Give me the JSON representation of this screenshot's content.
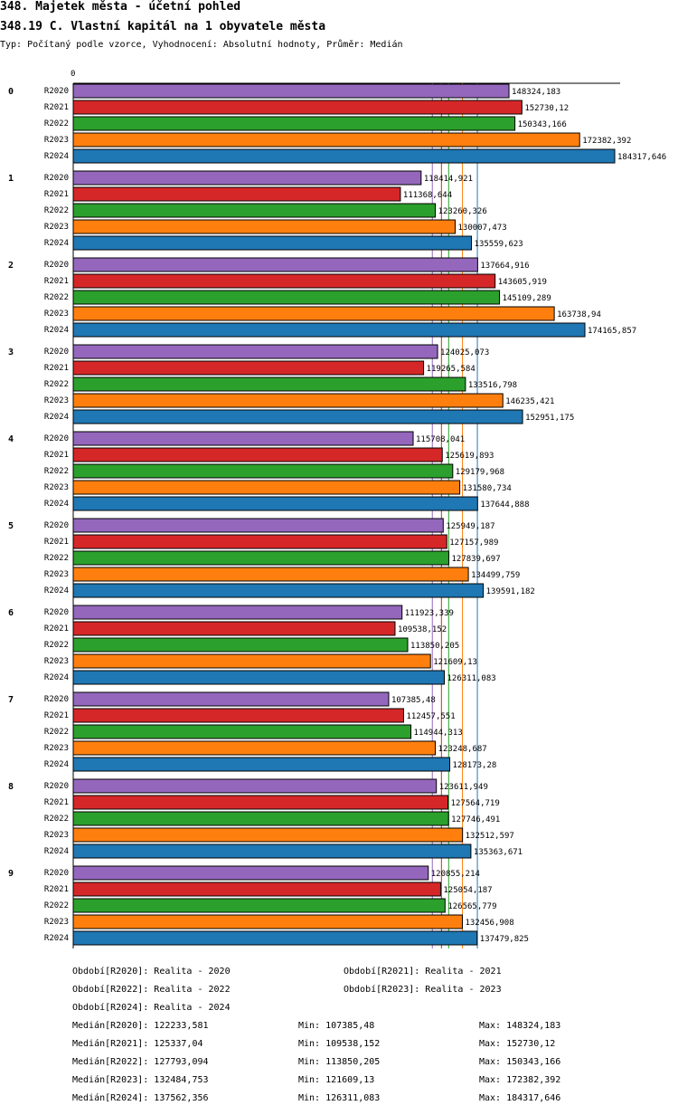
{
  "header": {
    "title": "348. Majetek města - účetní pohled",
    "subtitle": "348.19 C. Vlastní kapitál na 1 obyvatele města",
    "meta": "Typ: Počítaný podle vzorce, Vyhodnocení: Absolutní hodnoty, Průměr: Medián"
  },
  "chart_data": {
    "type": "bar",
    "orientation": "horizontal",
    "axis_zero_label": "0",
    "xlim": [
      0,
      184317.646
    ],
    "groups": [
      "0",
      "1",
      "2",
      "3",
      "4",
      "5",
      "6",
      "7",
      "8",
      "9"
    ],
    "series": [
      {
        "name": "R2020",
        "color": "#9467bd",
        "values": [
          148324.183,
          118414.921,
          137664.916,
          124025.073,
          115708.041,
          125949.187,
          111923.339,
          107385.48,
          123611.949,
          120855.214
        ],
        "labels": [
          "148324,183",
          "118414,921",
          "137664,916",
          "124025,073",
          "115708,041",
          "125949,187",
          "111923,339",
          "107385,48",
          "123611,949",
          "120855,214"
        ]
      },
      {
        "name": "R2021",
        "color": "#d62728",
        "values": [
          152730.12,
          111368.644,
          143605.919,
          119265.584,
          125619.893,
          127157.989,
          109538.152,
          112457.551,
          127564.719,
          125054.187
        ],
        "labels": [
          "152730,12",
          "111368,644",
          "143605,919",
          "119265,584",
          "125619,893",
          "127157,989",
          "109538,152",
          "112457,551",
          "127564,719",
          "125054,187"
        ]
      },
      {
        "name": "R2022",
        "color": "#2ca02c",
        "values": [
          150343.166,
          123260.326,
          145109.289,
          133516.798,
          129179.968,
          127839.697,
          113850.205,
          114944.313,
          127746.491,
          126565.779
        ],
        "labels": [
          "150343,166",
          "123260,326",
          "145109,289",
          "133516,798",
          "129179,968",
          "127839,697",
          "113850,205",
          "114944,313",
          "127746,491",
          "126565,779"
        ]
      },
      {
        "name": "R2023",
        "color": "#ff7f0e",
        "values": [
          172382.392,
          130007.473,
          163738.94,
          146235.421,
          131580.734,
          134499.759,
          121609.13,
          123248.687,
          132512.597,
          132456.908
        ],
        "labels": [
          "172382,392",
          "130007,473",
          "163738,94",
          "146235,421",
          "131580,734",
          "134499,759",
          "121609,13",
          "123248,687",
          "132512,597",
          "132456,908"
        ]
      },
      {
        "name": "R2024",
        "color": "#1f77b4",
        "values": [
          184317.646,
          135559.623,
          174165.857,
          152951.175,
          137644.888,
          139591.182,
          126311.083,
          128173.28,
          135363.671,
          137479.825
        ],
        "labels": [
          "184317,646",
          "135559,623",
          "174165,857",
          "152951,175",
          "137644,888",
          "139591,182",
          "126311,083",
          "128173,28",
          "135363,671",
          "137479,825"
        ]
      }
    ],
    "median_lines": [
      {
        "series": "R2020",
        "value": 122233.581,
        "color": "#9467bd"
      },
      {
        "series": "R2021",
        "value": 125337.04,
        "color": "#d62728"
      },
      {
        "series": "R2022",
        "value": 127793.094,
        "color": "#2ca02c"
      },
      {
        "series": "R2023",
        "value": 132484.753,
        "color": "#ff7f0e"
      },
      {
        "series": "R2024",
        "value": 137562.356,
        "color": "#1f77b4"
      }
    ]
  },
  "legend": {
    "periods": [
      "Období[R2020]: Realita - 2020",
      "Období[R2021]: Realita - 2021",
      "Období[R2022]: Realita - 2022",
      "Období[R2023]: Realita - 2023",
      "Období[R2024]: Realita - 2024"
    ],
    "stats": [
      {
        "median": "Medián[R2020]: 122233,581",
        "min": "Min: 107385,48",
        "max": "Max: 148324,183"
      },
      {
        "median": "Medián[R2021]: 125337,04",
        "min": "Min: 109538,152",
        "max": "Max: 152730,12"
      },
      {
        "median": "Medián[R2022]: 127793,094",
        "min": "Min: 113850,205",
        "max": "Max: 150343,166"
      },
      {
        "median": "Medián[R2023]: 132484,753",
        "min": "Min: 121609,13",
        "max": "Max: 172382,392"
      },
      {
        "median": "Medián[R2024]: 137562,356",
        "min": "Min: 126311,083",
        "max": "Max: 184317,646"
      }
    ]
  }
}
